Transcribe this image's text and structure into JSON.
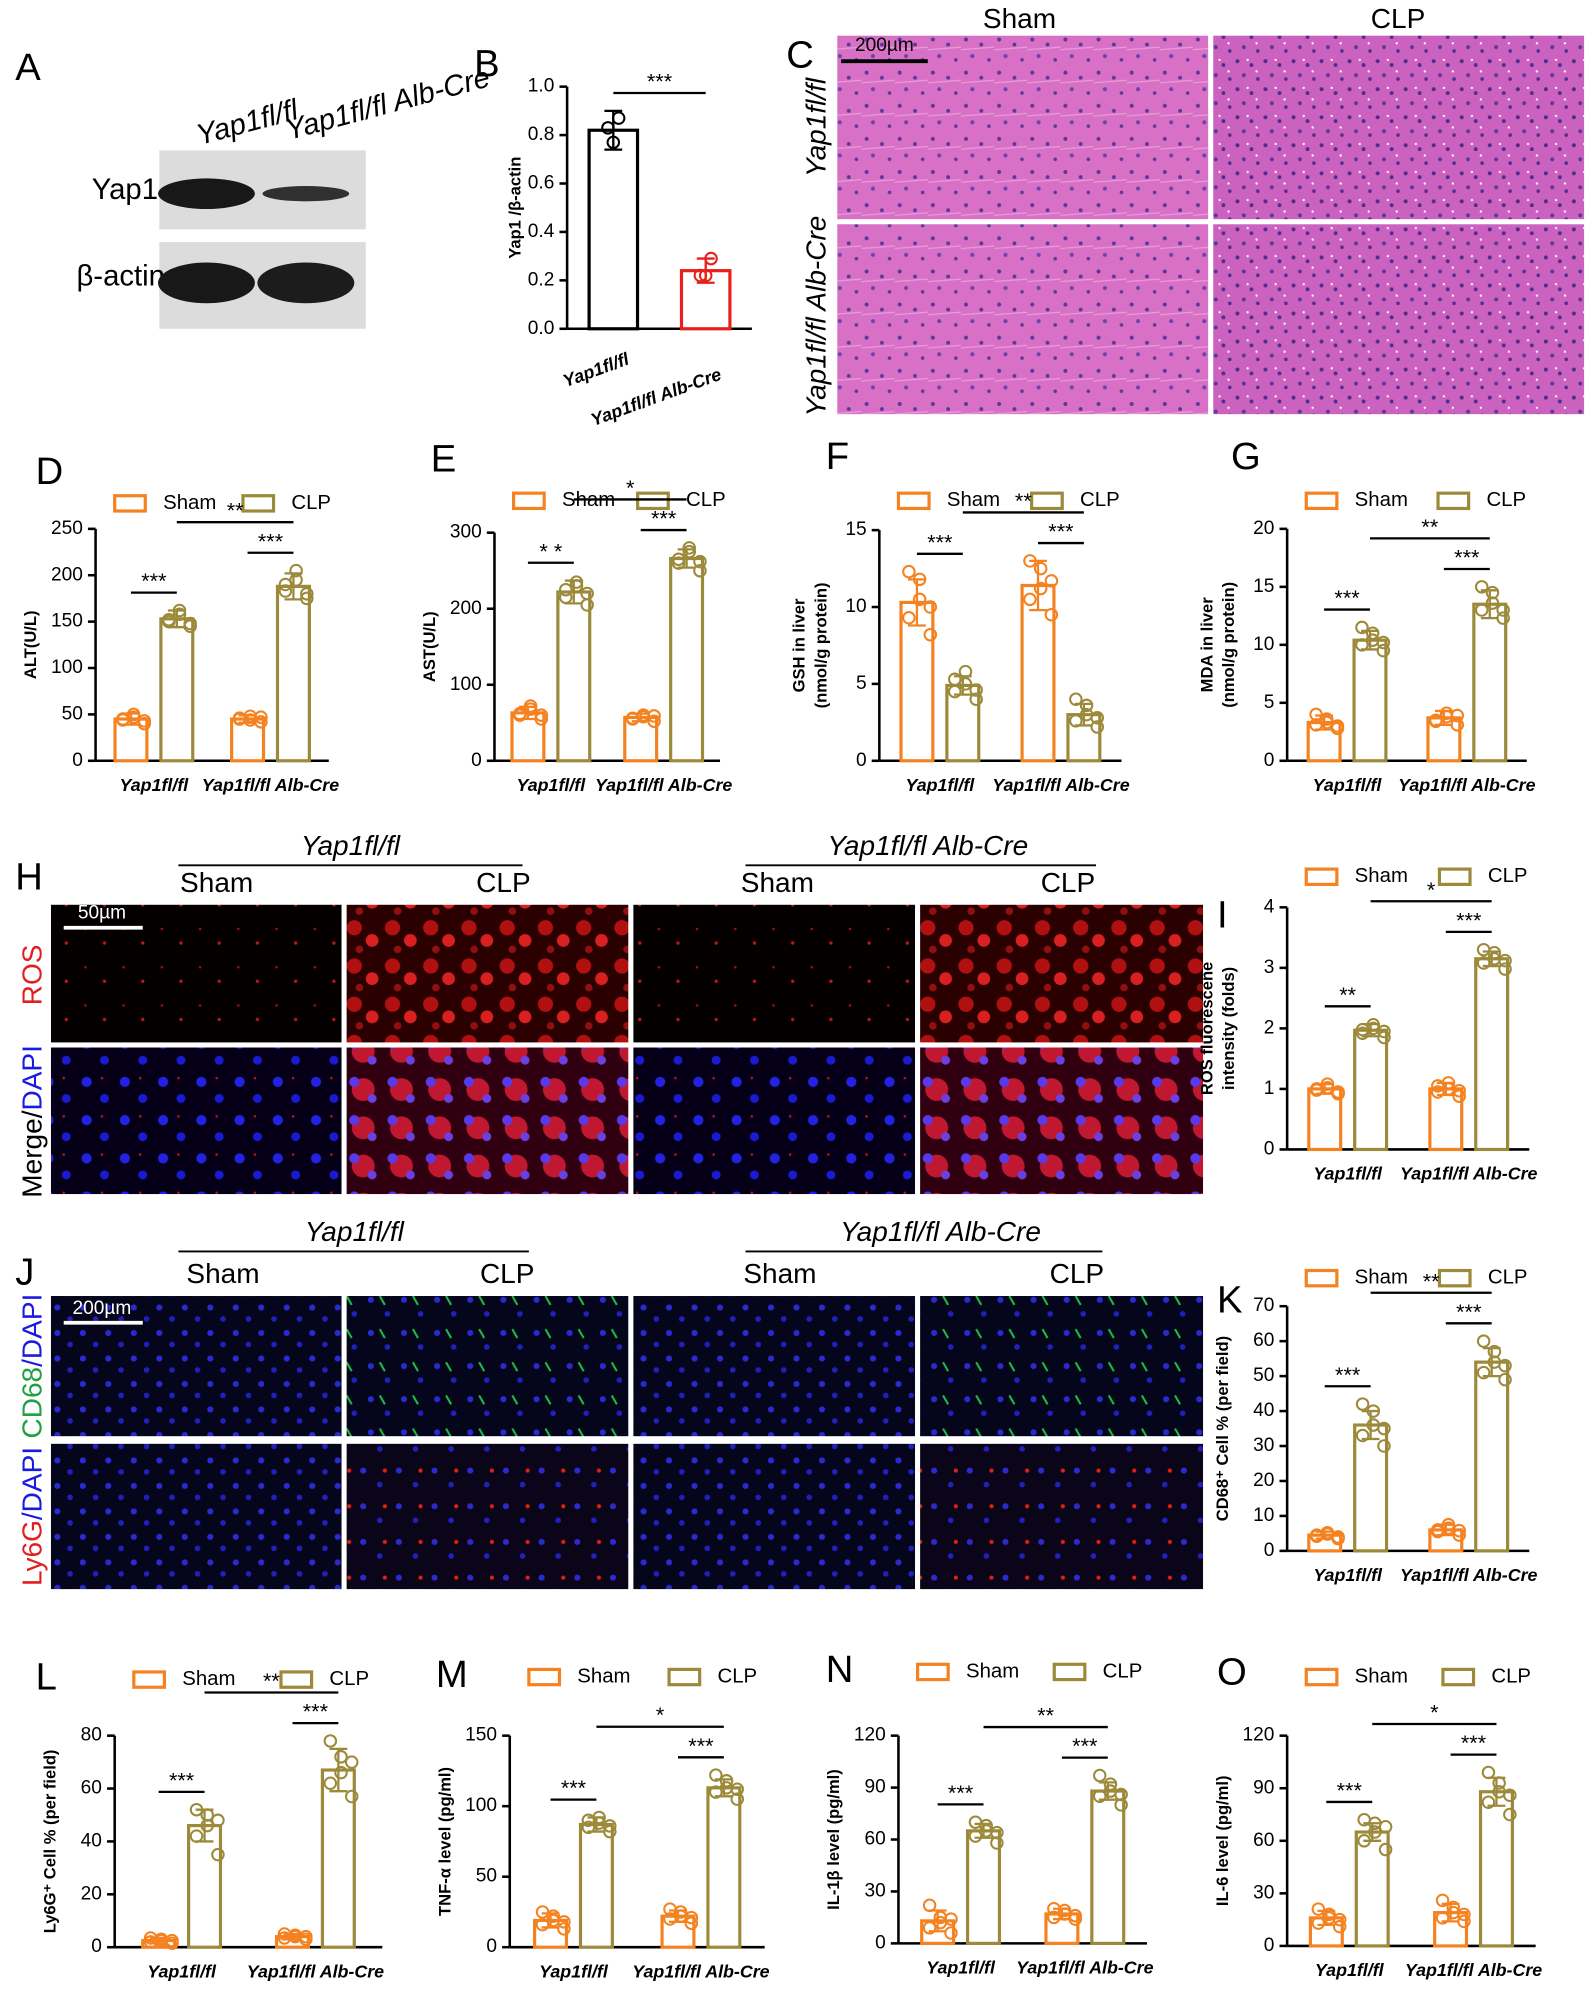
{
  "western": {
    "label": "A",
    "lanes": [
      "Yap1fl/fl",
      "Yap1fl/fl Alb-Cre"
    ],
    "bands": [
      "Yap1",
      "β-actin"
    ]
  },
  "histology": {
    "label": "C",
    "columns": [
      "Sham",
      "CLP"
    ],
    "rows": [
      "Yap1fl/fl",
      "Yap1fl/fl Alb-Cre"
    ],
    "scale_bar": "200µm"
  },
  "ros_imaging": {
    "label": "H",
    "groups": [
      "Yap1fl/fl",
      "Yap1fl/fl Alb-Cre"
    ],
    "conditions": [
      "Sham",
      "CLP",
      "Sham",
      "CLP"
    ],
    "stains": [
      [
        "ROS"
      ],
      [
        "Merge/",
        "DAPI"
      ]
    ],
    "scale_bar": "50µm"
  },
  "immuno_imaging": {
    "label": "J",
    "groups": [
      "Yap1fl/fl",
      "Yap1fl/fl Alb-Cre"
    ],
    "conditions": [
      "Sham",
      "CLP",
      "Sham",
      "CLP"
    ],
    "stains": [
      [
        "CD68",
        "/DAPI"
      ],
      [
        "Ly6G",
        "/DAPI"
      ]
    ],
    "scale_bar": "200µm"
  },
  "chart_data": [
    {
      "type": "bar",
      "label": "B",
      "ylabel": "Yap1 /β-actin",
      "categories": [
        "Yap1fl/fl",
        "Yap1fl/fl  Alb-Cre"
      ],
      "values": [
        0.82,
        0.24
      ],
      "errors": [
        0.08,
        0.05
      ],
      "points": [
        [
          0.87,
          0.77,
          0.83
        ],
        [
          0.29,
          0.22,
          0.22
        ]
      ],
      "colors": [
        "#000000",
        "#e8201c"
      ],
      "ylim": [
        0,
        1
      ],
      "yticks": [
        {
          "value": 0,
          "label": "0.0"
        },
        0.2,
        0.4,
        0.6,
        0.8,
        {
          "value": 1,
          "label": "1.0"
        }
      ],
      "significance": [
        "***"
      ]
    },
    {
      "type": "bar",
      "label": "D",
      "ylabel": "ALT(U/L)",
      "categories": [
        "Yap1fl/fl",
        "Yap1fl/fl Alb-Cre"
      ],
      "series": [
        {
          "name": "Sham",
          "color": "#f58220",
          "values": [
            45,
            45
          ],
          "errors": [
            6,
            4
          ],
          "points": [
            [
              40,
              44,
              47,
              50,
              45,
              43
            ],
            [
              42,
              46,
              48,
              44,
              45,
              47
            ]
          ]
        },
        {
          "name": "CLP",
          "color": "#9c8a3a",
          "values": [
            153,
            188
          ],
          "errors": [
            9,
            14
          ],
          "points": [
            [
              145,
              150,
              158,
              162,
              152,
              148
            ],
            [
              175,
              183,
              195,
              205,
              190,
              180
            ]
          ]
        }
      ],
      "ylim": [
        0,
        250
      ],
      "yticks": [
        0,
        50,
        100,
        150,
        200,
        250
      ],
      "significance": [
        "***",
        "***",
        "**"
      ]
    },
    {
      "type": "bar",
      "label": "E",
      "ylabel": "AST(U/L)",
      "categories": [
        "Yap1fl/fl",
        "Yap1fl/fl Alb-Cre"
      ],
      "series": [
        {
          "name": "Sham",
          "color": "#f58220",
          "values": [
            63,
            57
          ],
          "errors": [
            8,
            5
          ],
          "points": [
            [
              55,
              60,
              68,
              72,
              62,
              60
            ],
            [
              52,
              56,
              60,
              58,
              55,
              59
            ]
          ]
        },
        {
          "name": "CLP",
          "color": "#9c8a3a",
          "values": [
            222,
            266
          ],
          "errors": [
            15,
            12
          ],
          "points": [
            [
              205,
              215,
              230,
              235,
              225,
              220
            ],
            [
              250,
              260,
              275,
              280,
              265,
              262
            ]
          ]
        }
      ],
      "ylim": [
        0,
        300
      ],
      "yticks": [
        0,
        100,
        200,
        300
      ],
      "significance": [
        "* *",
        "***",
        "*"
      ]
    },
    {
      "type": "bar",
      "label": "F",
      "ylabel": [
        "GSH in liver",
        "(nmol/g protein)"
      ],
      "categories": [
        "Yap1fl/fl",
        "Yap1fl/fl Alb-Cre"
      ],
      "series": [
        {
          "name": "Sham",
          "color": "#f58220",
          "values": [
            10.3,
            11.4
          ],
          "errors": [
            1.5,
            1.6
          ],
          "points": [
            [
              8.2,
              9.3,
              10.5,
              11.8,
              12.3,
              10.0
            ],
            [
              9.5,
              10.5,
              11.2,
              12.5,
              13.0,
              11.7
            ]
          ]
        },
        {
          "name": "CLP",
          "color": "#9c8a3a",
          "values": [
            4.9,
            3.0
          ],
          "errors": [
            0.6,
            0.7
          ],
          "points": [
            [
              4.0,
              4.5,
              5.0,
              5.8,
              5.3,
              4.6
            ],
            [
              2.2,
              2.6,
              3.0,
              3.6,
              4.0,
              2.8
            ]
          ]
        }
      ],
      "ylim": [
        0,
        15
      ],
      "yticks": [
        0,
        5,
        10,
        15
      ],
      "significance": [
        "***",
        "***",
        "**"
      ]
    },
    {
      "type": "bar",
      "label": "G",
      "ylabel": [
        "MDA in liver",
        "(nmol/g protein)"
      ],
      "categories": [
        "Yap1fl/fl",
        "Yap1fl/fl Alb-Cre"
      ],
      "series": [
        {
          "name": "Sham",
          "color": "#f58220",
          "values": [
            3.3,
            3.7
          ],
          "errors": [
            0.6,
            0.6
          ],
          "points": [
            [
              2.8,
              3.1,
              3.3,
              3.6,
              4.0,
              3.0
            ],
            [
              3.1,
              3.5,
              3.8,
              4.1,
              3.4,
              3.9
            ]
          ]
        },
        {
          "name": "CLP",
          "color": "#9c8a3a",
          "values": [
            10.4,
            13.5
          ],
          "errors": [
            0.8,
            1.2
          ],
          "points": [
            [
              9.5,
              10.0,
              10.4,
              11.0,
              11.5,
              10.2
            ],
            [
              12.3,
              13.0,
              13.6,
              14.5,
              15.0,
              13.0
            ]
          ]
        }
      ],
      "ylim": [
        0,
        20
      ],
      "yticks": [
        0,
        5,
        10,
        15,
        20
      ],
      "significance": [
        "***",
        "***",
        "**"
      ]
    },
    {
      "type": "bar",
      "label": "I",
      "ylabel": [
        "ROS fluorescene",
        "intensity (folds)"
      ],
      "categories": [
        "Yap1fl/fl",
        "Yap1fl/fl Alb-Cre"
      ],
      "series": [
        {
          "name": "Sham",
          "color": "#f58220",
          "values": [
            1.0,
            1.0
          ],
          "errors": [
            0.08,
            0.1
          ],
          "points": [
            [
              0.92,
              0.98,
              1.02,
              1.08,
              1.0,
              0.95
            ],
            [
              0.88,
              0.95,
              1.0,
              1.1,
              1.05,
              0.97
            ]
          ]
        },
        {
          "name": "CLP",
          "color": "#9c8a3a",
          "values": [
            1.97,
            3.15
          ],
          "errors": [
            0.1,
            0.12
          ],
          "points": [
            [
              1.85,
              1.92,
              2.0,
              2.06,
              1.98,
              1.95
            ],
            [
              2.98,
              3.08,
              3.15,
              3.25,
              3.3,
              3.12
            ]
          ]
        }
      ],
      "ylim": [
        0,
        4
      ],
      "yticks": [
        0,
        1,
        2,
        3,
        4
      ],
      "significance": [
        "**",
        "***",
        "*"
      ]
    },
    {
      "type": "bar",
      "label": "K",
      "ylabel": "CD68⁺ Cell % (per field)",
      "categories": [
        "Yap1fl/fl",
        "Yap1fl/fl Alb-Cre"
      ],
      "series": [
        {
          "name": "Sham",
          "color": "#f58220",
          "values": [
            4.5,
            6
          ],
          "errors": [
            1,
            1.5
          ],
          "points": [
            [
              3.5,
              4.2,
              4.8,
              5.2,
              4.5,
              4.0
            ],
            [
              4.5,
              5.5,
              6.5,
              7.5,
              6.0,
              5.8
            ]
          ]
        },
        {
          "name": "CLP",
          "color": "#9c8a3a",
          "values": [
            36,
            54
          ],
          "errors": [
            4,
            4
          ],
          "points": [
            [
              30,
              33,
              36,
              40,
              42,
              35
            ],
            [
              49,
              51,
              54,
              57,
              60,
              53
            ]
          ]
        }
      ],
      "ylim": [
        0,
        70
      ],
      "yticks": [
        0,
        10,
        20,
        30,
        40,
        50,
        60,
        70
      ],
      "significance": [
        "***",
        "***",
        "**"
      ]
    },
    {
      "type": "bar",
      "label": "L",
      "ylabel": "Ly6G⁺ Cell % (per field)",
      "categories": [
        "Yap1fl/fl",
        "Yap1fl/fl Alb-Cre"
      ],
      "series": [
        {
          "name": "Sham",
          "color": "#f58220",
          "values": [
            2.5,
            4
          ],
          "errors": [
            1,
            1
          ],
          "points": [
            [
              1.5,
              2,
              2.5,
              3,
              3.5,
              2.5
            ],
            [
              3,
              3.5,
              4,
              4.5,
              5,
              4
            ]
          ]
        },
        {
          "name": "CLP",
          "color": "#9c8a3a",
          "values": [
            46,
            67
          ],
          "errors": [
            6,
            8
          ],
          "points": [
            [
              35,
              42,
              46,
              50,
              52,
              48
            ],
            [
              57,
              62,
              66,
              72,
              78,
              70
            ]
          ]
        }
      ],
      "ylim": [
        0,
        80
      ],
      "yticks": [
        0,
        20,
        40,
        60,
        80
      ],
      "significance": [
        "***",
        "***",
        "**"
      ]
    },
    {
      "type": "bar",
      "label": "M",
      "ylabel": "TNF-α level (pg/ml)",
      "categories": [
        "Yap1fl/fl",
        "Yap1fl/fl Alb-Cre"
      ],
      "series": [
        {
          "name": "Sham",
          "color": "#f58220",
          "values": [
            19,
            22
          ],
          "errors": [
            5,
            4
          ],
          "points": [
            [
              13,
              16,
              19,
              22,
              25,
              18
            ],
            [
              17,
              20,
              22,
              25,
              27,
              21
            ]
          ]
        },
        {
          "name": "CLP",
          "color": "#9c8a3a",
          "values": [
            87,
            113
          ],
          "errors": [
            5,
            6
          ],
          "points": [
            [
              82,
              85,
              88,
              92,
              90,
              86
            ],
            [
              105,
              110,
              113,
              118,
              122,
              112
            ]
          ]
        }
      ],
      "ylim": [
        0,
        150
      ],
      "yticks": [
        0,
        50,
        100,
        150
      ],
      "significance": [
        "***",
        "***",
        "*"
      ]
    },
    {
      "type": "bar",
      "label": "N",
      "ylabel": "IL-1β level (pg/ml)",
      "categories": [
        "Yap1fl/fl",
        "Yap1fl/fl Alb-Cre"
      ],
      "series": [
        {
          "name": "Sham",
          "color": "#f58220",
          "values": [
            13,
            17
          ],
          "errors": [
            6,
            3
          ],
          "points": [
            [
              6,
              9,
              12,
              15,
              22,
              14
            ],
            [
              14,
              15,
              17,
              19,
              20,
              16
            ]
          ]
        },
        {
          "name": "CLP",
          "color": "#9c8a3a",
          "values": [
            65,
            88
          ],
          "errors": [
            4,
            5
          ],
          "points": [
            [
              58,
              62,
              65,
              68,
              70,
              64
            ],
            [
              80,
              85,
              88,
              92,
              97,
              86
            ]
          ]
        }
      ],
      "ylim": [
        0,
        120
      ],
      "yticks": [
        0,
        30,
        60,
        90,
        120
      ],
      "significance": [
        "***",
        "***",
        "**"
      ]
    },
    {
      "type": "bar",
      "label": "O",
      "ylabel": "IL-6 level (pg/ml)",
      "categories": [
        "Yap1fl/fl",
        "Yap1fl/fl Alb-Cre"
      ],
      "series": [
        {
          "name": "Sham",
          "color": "#f58220",
          "values": [
            16,
            19
          ],
          "errors": [
            4,
            5
          ],
          "points": [
            [
              11,
              13,
              16,
              18,
              21,
              15
            ],
            [
              14,
              16,
              19,
              22,
              26,
              18
            ]
          ]
        },
        {
          "name": "CLP",
          "color": "#9c8a3a",
          "values": [
            65,
            88
          ],
          "errors": [
            5,
            8
          ],
          "points": [
            [
              55,
              60,
              65,
              70,
              72,
              68
            ],
            [
              75,
              82,
              88,
              93,
              99,
              86
            ]
          ]
        }
      ],
      "ylim": [
        0,
        120
      ],
      "yticks": [
        0,
        30,
        60,
        90,
        120
      ],
      "significance": [
        "***",
        "***",
        "*"
      ]
    }
  ]
}
